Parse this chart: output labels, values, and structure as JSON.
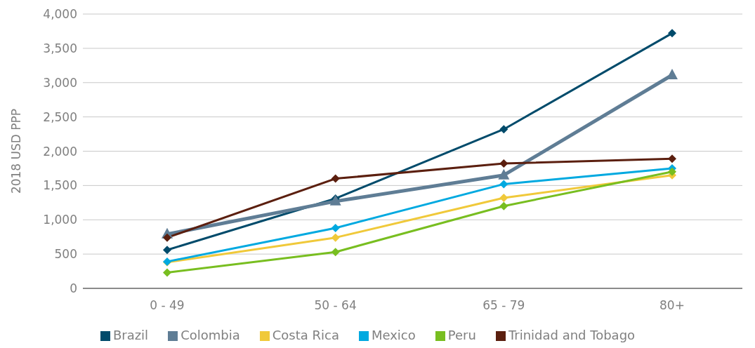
{
  "chart_data": {
    "type": "line",
    "ylabel": "2018 USD PPP",
    "categories": [
      "0 - 49",
      "50 - 64",
      "65 - 79",
      "80+"
    ],
    "ylim": [
      0,
      4000
    ],
    "yticks": [
      {
        "value": 0,
        "label": "0"
      },
      {
        "value": 500,
        "label": "500"
      },
      {
        "value": 1000,
        "label": "1,000"
      },
      {
        "value": 1500,
        "label": "1,500"
      },
      {
        "value": 2000,
        "label": "2,000"
      },
      {
        "value": 2500,
        "label": "2,500"
      },
      {
        "value": 3000,
        "label": "3,000"
      },
      {
        "value": 3500,
        "label": "3,500"
      },
      {
        "value": 4000,
        "label": "4,000"
      }
    ],
    "grid": "y",
    "legend": "bottom",
    "line_style": "solid",
    "series": [
      {
        "name": "Brazil",
        "color": "#004b6b",
        "marker": "diamond",
        "values": [
          560,
          1310,
          2320,
          3720
        ]
      },
      {
        "name": "Colombia",
        "color": "#5f7d95",
        "marker": "triangle",
        "values": [
          790,
          1270,
          1650,
          3110
        ]
      },
      {
        "name": "Costa Rica",
        "color": "#f0c93a",
        "marker": "diamond",
        "values": [
          380,
          740,
          1320,
          1650
        ]
      },
      {
        "name": "Mexico",
        "color": "#00a9e0",
        "marker": "diamond",
        "values": [
          390,
          880,
          1520,
          1750
        ]
      },
      {
        "name": "Peru",
        "color": "#78be20",
        "marker": "diamond",
        "values": [
          230,
          530,
          1200,
          1700
        ]
      },
      {
        "name": "Trinidad and Tobago",
        "color": "#5b1f0f",
        "marker": "diamond",
        "values": [
          740,
          1600,
          1820,
          1890
        ]
      }
    ]
  }
}
